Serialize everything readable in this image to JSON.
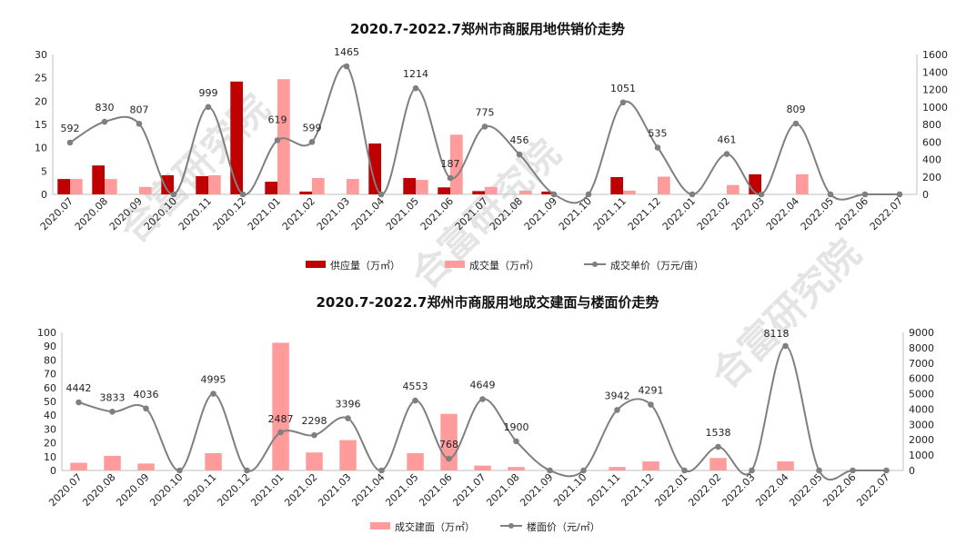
{
  "watermark": "合富研究院",
  "categories": [
    "2020.07",
    "2020.08",
    "2020.09",
    "2020.10",
    "2020.11",
    "2020.12",
    "2021.01",
    "2021.02",
    "2021.03",
    "2021.04",
    "2021.05",
    "2021.06",
    "2021.07",
    "2021.08",
    "2021.09",
    "2021.10",
    "2021.11",
    "2021.12",
    "2022.01",
    "2022.02",
    "2022.03",
    "2022.04",
    "2022.05",
    "2022.06",
    "2022.07"
  ],
  "colors": {
    "supply": "#c00000",
    "deal_bar": "#ff9b9b",
    "line": "#7f7f7f"
  },
  "chart_data": [
    {
      "type": "bar",
      "title": "2020.7-2022.7郑州市商服用地供销价走势",
      "ylim": [
        0,
        30
      ],
      "y_ticks": [
        "0",
        "5",
        "10",
        "15",
        "20",
        "25",
        "30"
      ],
      "y2lim": [
        0,
        1600
      ],
      "y2_ticks": [
        "0",
        "200",
        "400",
        "600",
        "800",
        "1000",
        "1200",
        "1400",
        "1600"
      ],
      "series": [
        {
          "name": "供应量（万㎡）",
          "type": "bar",
          "axis": "left",
          "values": [
            3.3,
            6.2,
            0,
            4.1,
            3.9,
            24.2,
            2.7,
            0.6,
            0,
            10.9,
            3.5,
            1.5,
            0.7,
            0,
            0.6,
            0,
            3.7,
            0,
            0,
            0,
            4.3,
            0,
            0,
            0,
            0
          ]
        },
        {
          "name": "成交量（万㎡）",
          "type": "bar",
          "axis": "left",
          "values": [
            3.3,
            3.3,
            1.6,
            0,
            4.1,
            0,
            24.7,
            3.5,
            3.3,
            0,
            3.1,
            12.8,
            1.6,
            0.8,
            0,
            0,
            0.8,
            3.8,
            0,
            2.0,
            0,
            4.3,
            0,
            0,
            0
          ]
        },
        {
          "name": "成交单价（万元/亩）",
          "type": "line",
          "axis": "right",
          "values": [
            592,
            830,
            807,
            0,
            999,
            0,
            619,
            599,
            1465,
            0,
            1214,
            187,
            775,
            456,
            0,
            0,
            1051,
            535,
            0,
            461,
            0,
            809,
            0,
            0,
            0
          ],
          "labels": [
            "592",
            "830",
            "807",
            "",
            "999",
            "",
            "619",
            "599",
            "1465",
            "",
            "1214",
            "187",
            "775",
            "456",
            "",
            "",
            "1051",
            "535",
            "",
            "461",
            "",
            "809",
            "",
            "",
            ""
          ]
        }
      ],
      "legend": "bottom"
    },
    {
      "type": "bar",
      "title": "2020.7-2022.7郑州市商服用地成交建面与楼面价走势",
      "ylim": [
        0,
        100
      ],
      "y_ticks": [
        "0",
        "10",
        "20",
        "30",
        "40",
        "50",
        "60",
        "70",
        "80",
        "90",
        "100"
      ],
      "y2lim": [
        0,
        9000
      ],
      "y2_ticks": [
        "0",
        "1000",
        "2000",
        "3000",
        "4000",
        "5000",
        "6000",
        "7000",
        "8000",
        "9000"
      ],
      "series": [
        {
          "name": "成交建面（万㎡）",
          "type": "bar",
          "axis": "left",
          "values": [
            5.5,
            10.5,
            5,
            0,
            12.5,
            0,
            92.5,
            13,
            22,
            0,
            12.5,
            41,
            3.5,
            2.5,
            0,
            0,
            2.5,
            6.5,
            0,
            9,
            0,
            6.5,
            0,
            0,
            0
          ]
        },
        {
          "name": "楼面价（元/㎡）",
          "type": "line",
          "axis": "right",
          "values": [
            4442,
            3833,
            4036,
            0,
            4995,
            0,
            2487,
            2298,
            3396,
            0,
            4553,
            768,
            4649,
            1900,
            0,
            0,
            3942,
            4291,
            0,
            1538,
            0,
            8118,
            0,
            0,
            0
          ],
          "labels": [
            "4442",
            "3833",
            "4036",
            "",
            "4995",
            "",
            "2487",
            "2298",
            "3396",
            "",
            "4553",
            "768",
            "4649",
            "1900",
            "",
            "",
            "3942",
            "4291",
            "",
            "1538",
            "",
            "8118",
            "",
            "",
            ""
          ]
        }
      ],
      "legend": "bottom"
    }
  ]
}
